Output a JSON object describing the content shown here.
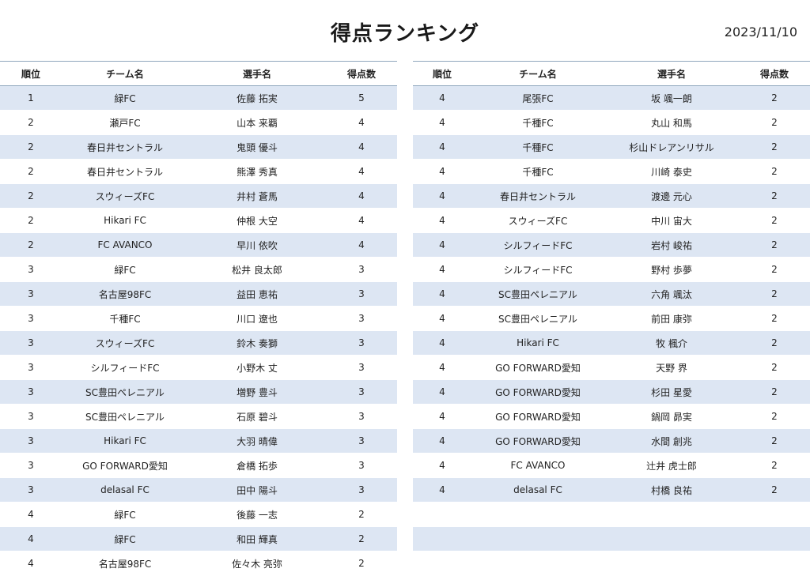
{
  "header": {
    "title": "得点ランキング",
    "date": "2023/11/10"
  },
  "columns": [
    "順位",
    "チーム名",
    "選手名",
    "得点数"
  ],
  "left_rows": [
    [
      "1",
      "緑FC",
      "佐藤 拓実",
      "5"
    ],
    [
      "2",
      "瀬戸FC",
      "山本 来覇",
      "4"
    ],
    [
      "2",
      "春日井セントラル",
      "鬼頭 優斗",
      "4"
    ],
    [
      "2",
      "春日井セントラル",
      "熊澤 秀真",
      "4"
    ],
    [
      "2",
      "スウィーズFC",
      "井村 蒼馬",
      "4"
    ],
    [
      "2",
      "Hikari FC",
      "仲根 大空",
      "4"
    ],
    [
      "2",
      "FC AVANCO",
      "早川 依吹",
      "4"
    ],
    [
      "3",
      "緑FC",
      "松井 良太郎",
      "3"
    ],
    [
      "3",
      "名古屋98FC",
      "益田 恵祐",
      "3"
    ],
    [
      "3",
      "千種FC",
      "川口 遼也",
      "3"
    ],
    [
      "3",
      "スウィーズFC",
      "鈴木 奏獅",
      "3"
    ],
    [
      "3",
      "シルフィードFC",
      "小野木 丈",
      "3"
    ],
    [
      "3",
      "SC豊田ペレニアル",
      "増野 豊斗",
      "3"
    ],
    [
      "3",
      "SC豊田ペレニアル",
      "石原 碧斗",
      "3"
    ],
    [
      "3",
      "Hikari FC",
      "大羽 晴偉",
      "3"
    ],
    [
      "3",
      "GO FORWARD愛知",
      "倉橋 拓歩",
      "3"
    ],
    [
      "3",
      "delasal FC",
      "田中 陽斗",
      "3"
    ],
    [
      "4",
      "緑FC",
      "後藤 一志",
      "2"
    ],
    [
      "4",
      "緑FC",
      "和田 輝真",
      "2"
    ],
    [
      "4",
      "名古屋98FC",
      "佐々木 亮弥",
      "2"
    ]
  ],
  "right_rows": [
    [
      "4",
      "尾張FC",
      "坂 颯一朗",
      "2"
    ],
    [
      "4",
      "千種FC",
      "丸山 和馬",
      "2"
    ],
    [
      "4",
      "千種FC",
      "杉山ドレアンリサル",
      "2"
    ],
    [
      "4",
      "千種FC",
      "川崎 泰史",
      "2"
    ],
    [
      "4",
      "春日井セントラル",
      "渡邊 元心",
      "2"
    ],
    [
      "4",
      "スウィーズFC",
      "中川 宙大",
      "2"
    ],
    [
      "4",
      "シルフィードFC",
      "岩村 峻祐",
      "2"
    ],
    [
      "4",
      "シルフィードFC",
      "野村 歩夢",
      "2"
    ],
    [
      "4",
      "SC豊田ペレニアル",
      "六角 颯汰",
      "2"
    ],
    [
      "4",
      "SC豊田ペレニアル",
      "前田 康弥",
      "2"
    ],
    [
      "4",
      "Hikari FC",
      "牧 楓介",
      "2"
    ],
    [
      "4",
      "GO FORWARD愛知",
      "天野 界",
      "2"
    ],
    [
      "4",
      "GO FORWARD愛知",
      "杉田 星愛",
      "2"
    ],
    [
      "4",
      "GO FORWARD愛知",
      "鍋岡 昴実",
      "2"
    ],
    [
      "4",
      "GO FORWARD愛知",
      "水間 創兆",
      "2"
    ],
    [
      "4",
      "FC AVANCO",
      "辻井 虎士郎",
      "2"
    ],
    [
      "4",
      "delasal FC",
      "村橋 良祐",
      "2"
    ],
    [
      "",
      "",
      "",
      ""
    ],
    [
      "",
      "",
      "",
      ""
    ]
  ]
}
